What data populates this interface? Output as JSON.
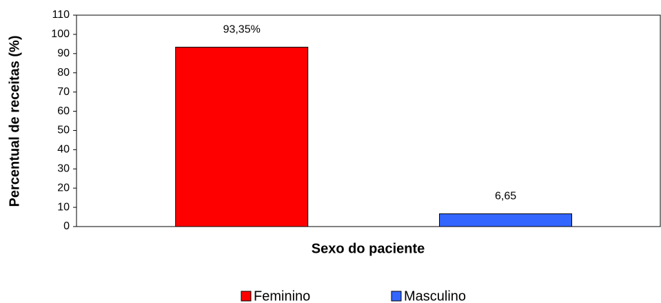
{
  "chart_data": {
    "type": "bar",
    "xlabel": "Sexo do paciente",
    "ylabel": "Percentual de receitas (%)",
    "categories": [
      null
    ],
    "series": [
      {
        "name": "Feminino",
        "color": "#ff0000",
        "values": [
          93.35
        ],
        "value_labels": [
          "93,35%"
        ]
      },
      {
        "name": "Masculino",
        "color": "#3366ff",
        "values": [
          6.65
        ],
        "value_labels": [
          "6,65"
        ]
      }
    ],
    "ylim": [
      0,
      110
    ],
    "yticks": [
      0,
      10,
      20,
      30,
      40,
      50,
      60,
      70,
      80,
      90,
      100,
      110
    ],
    "legend": "bottom"
  }
}
